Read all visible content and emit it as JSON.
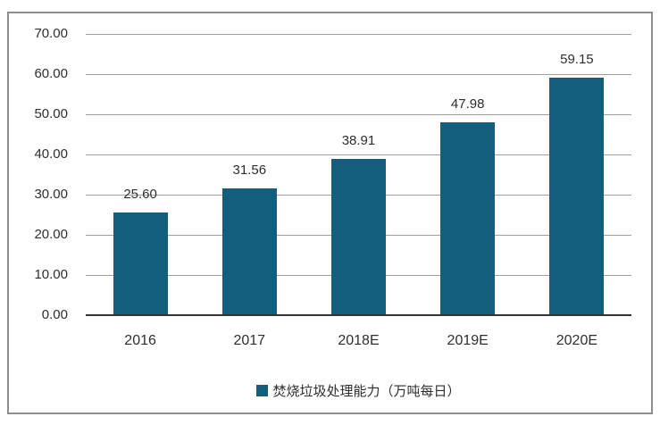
{
  "chart_data": {
    "type": "bar",
    "title": "",
    "xlabel": "",
    "ylabel": "",
    "categories": [
      "2016",
      "2017",
      "2018E",
      "2019E",
      "2020E"
    ],
    "values": [
      25.6,
      31.56,
      38.91,
      47.98,
      59.15
    ],
    "value_labels": [
      "25.60",
      "31.56",
      "38.91",
      "47.98",
      "59.15"
    ],
    "series_name": "焚烧垃圾处理能力（万吨每日）",
    "ylim": [
      0,
      70
    ],
    "ytick_step": 10,
    "ytick_labels": [
      "0.00",
      "10.00",
      "20.00",
      "30.00",
      "40.00",
      "50.00",
      "60.00",
      "70.00"
    ],
    "grid": true,
    "legend_position": "bottom",
    "bar_color": "#135E7D"
  },
  "legend": {
    "marker": "square-icon",
    "marker_color": "#135E7D",
    "label": "焚烧垃圾处理能力（万吨每日）"
  },
  "colors": {
    "bar": "#135E7D",
    "gridline": "#A0A0A0",
    "axis_line": "#333333",
    "text": "#2E2E2E",
    "frame_border": "#8D8D8D",
    "background": "#FFFFFF"
  }
}
